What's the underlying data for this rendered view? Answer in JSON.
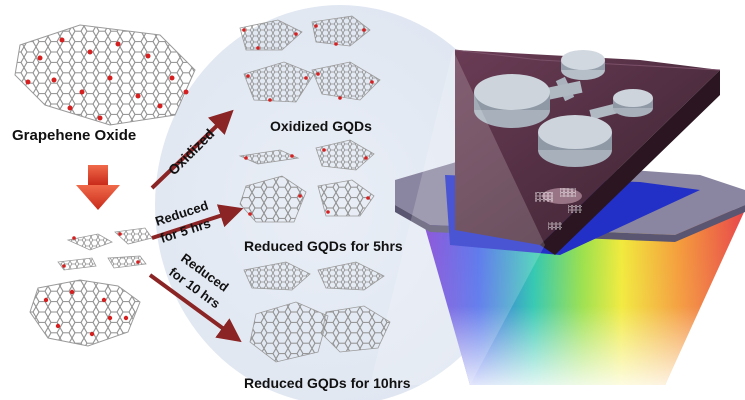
{
  "labels": {
    "graphene_oxide": "Grapehene Oxide",
    "oxidized_gqds": "Oxidized GQDs",
    "reduced_5": "Reduced GQDs for 5hrs",
    "reduced_10": "Reduced GQDs for 10hrs"
  },
  "arrows": {
    "oxidized": "Oxidized",
    "reduced_5_line1": "Reduced",
    "reduced_5_line2": "for 5 hrs",
    "reduced_10_line1": "Reduced",
    "reduced_10_line2": "for 10 hrs"
  },
  "colors": {
    "arrow": "#8b2424",
    "down_arrow": "#e03a22",
    "oxygen": "#d42020",
    "lattice": "#9a9a9a",
    "device_top": "#4a2c3d",
    "device_blue": "#2230c8",
    "device_base": "#7a7590"
  }
}
